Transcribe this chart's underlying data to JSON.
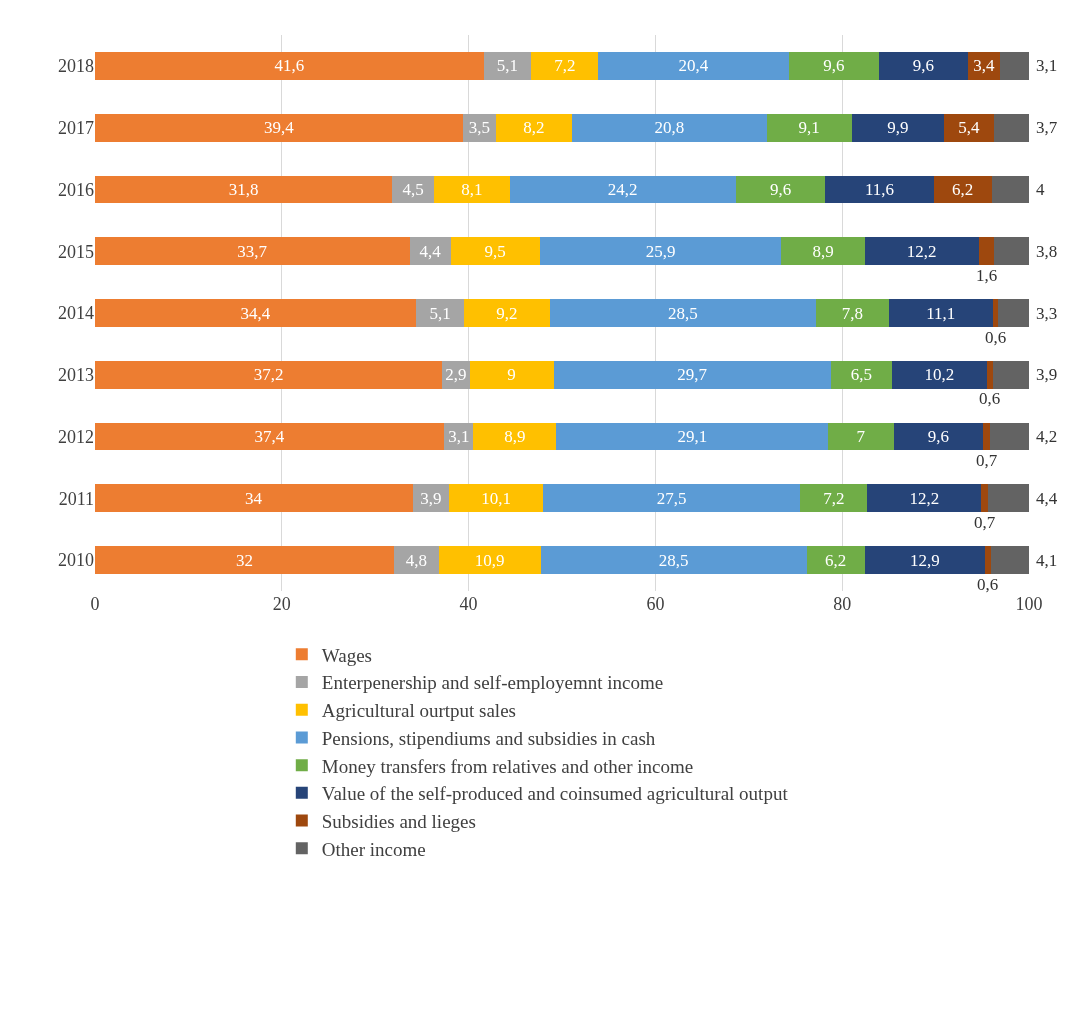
{
  "chart_data": {
    "type": "bar",
    "orientation": "horizontal",
    "stacked": true,
    "categories": [
      "2018",
      "2017",
      "2016",
      "2015",
      "2014",
      "2013",
      "2012",
      "2011",
      "2010"
    ],
    "series": [
      {
        "name": "Wages",
        "color": "#ed7d31",
        "values": [
          41.6,
          39.4,
          31.8,
          33.7,
          34.4,
          37.2,
          37.4,
          34,
          32
        ],
        "value_labels": [
          "41,6",
          "39,4",
          "31,8",
          "33,7",
          "34,4",
          "37,2",
          "37,4",
          "34",
          "32"
        ]
      },
      {
        "name": "Enterpenership and self-employemnt income",
        "color": "#a5a5a5",
        "values": [
          5.1,
          3.5,
          4.5,
          4.4,
          5.1,
          2.9,
          3.1,
          3.9,
          4.8
        ],
        "value_labels": [
          "5,1",
          "3,5",
          "4,5",
          "4,4",
          "5,1",
          "2,9",
          "3,1",
          "3,9",
          "4,8"
        ]
      },
      {
        "name": "Agricultural ourtput sales",
        "color": "#ffc000",
        "values": [
          7.2,
          8.2,
          8.1,
          9.5,
          9.2,
          9,
          8.9,
          10.1,
          10.9
        ],
        "value_labels": [
          "7,2",
          "8,2",
          "8,1",
          "9,5",
          "9,2",
          "9",
          "8,9",
          "10,1",
          "10,9"
        ]
      },
      {
        "name": "Pensions, stipendiums and subsidies in cash",
        "color": "#5b9bd5",
        "values": [
          20.4,
          20.8,
          24.2,
          25.9,
          28.5,
          29.7,
          29.1,
          27.5,
          28.5
        ],
        "value_labels": [
          "20,4",
          "20,8",
          "24,2",
          "25,9",
          "28,5",
          "29,7",
          "29,1",
          "27,5",
          "28,5"
        ]
      },
      {
        "name": "Money transfers from relatives and other income",
        "color": "#70ad47",
        "values": [
          9.6,
          9.1,
          9.6,
          8.9,
          7.8,
          6.5,
          7,
          7.2,
          6.2
        ],
        "value_labels": [
          "9,6",
          "9,1",
          "9,6",
          "8,9",
          "7,8",
          "6,5",
          "7",
          "7,2",
          "6,2"
        ]
      },
      {
        "name": "Value of the self-produced and coinsumed agricultural output",
        "color": "#264478",
        "values": [
          9.6,
          9.9,
          11.6,
          12.2,
          11.1,
          10.2,
          9.6,
          12.2,
          12.9
        ],
        "value_labels": [
          "9,6",
          "9,9",
          "11,6",
          "12,2",
          "11,1",
          "10,2",
          "9,6",
          "12,2",
          "12,9"
        ]
      },
      {
        "name": "Subsidies and lieges",
        "color": "#9e480e",
        "values": [
          3.4,
          5.4,
          6.2,
          1.6,
          0.6,
          0.6,
          0.7,
          0.7,
          0.6
        ],
        "value_labels": [
          "3,4",
          "5,4",
          "6,2",
          "1,6",
          "0,6",
          "0,6",
          "0,7",
          "0,7",
          "0,6"
        ]
      },
      {
        "name": "Other income",
        "color": "#636363",
        "values": [
          3.1,
          3.7,
          4,
          3.8,
          3.3,
          3.9,
          4.2,
          4.4,
          4.1
        ],
        "value_labels": [
          "3,1",
          "3,7",
          "4",
          "3,8",
          "3,3",
          "3,9",
          "4,2",
          "4,4",
          "4,1"
        ]
      }
    ],
    "xlim": [
      0,
      100
    ],
    "xticks": [
      0,
      20,
      40,
      60,
      80,
      100
    ],
    "grid": "x",
    "legend": "bottom"
  }
}
